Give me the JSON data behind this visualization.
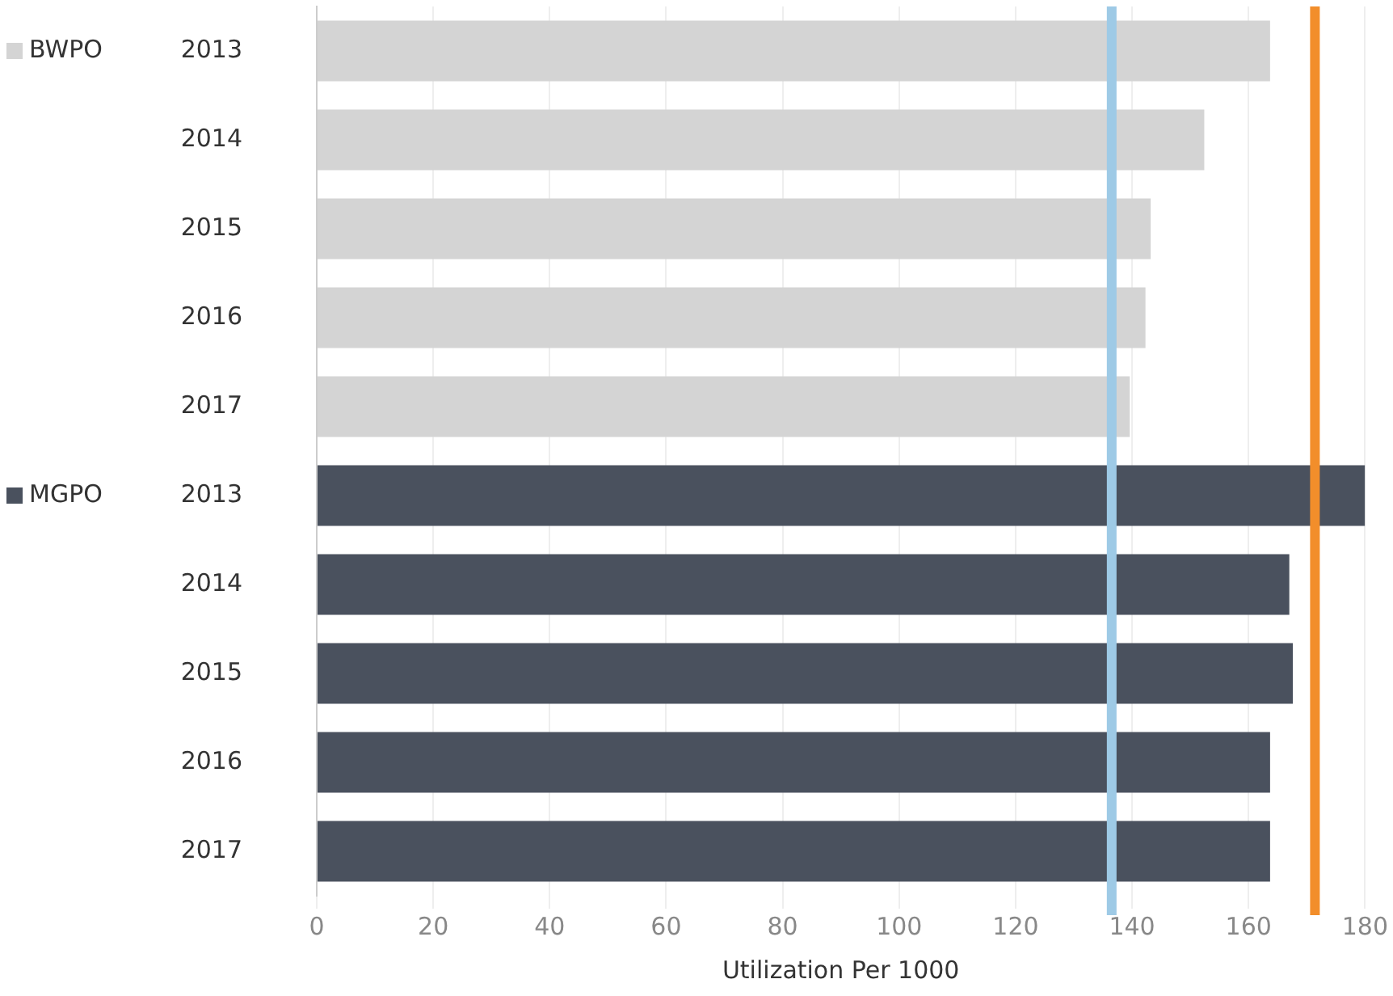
{
  "chart_data": {
    "type": "bar",
    "orientation": "horizontal",
    "stacked": true,
    "categories": [
      "2013",
      "2014",
      "2015",
      "2016",
      "2017",
      "2013",
      "2014",
      "2015",
      "2016",
      "2017"
    ],
    "series": [
      {
        "name": "BWPO",
        "color": "#d4d4d4",
        "values": [
          163.7,
          152.4,
          143.2,
          142.3,
          139.6,
          null,
          null,
          null,
          null,
          null
        ]
      },
      {
        "name": "MGPO",
        "color": "#4a515e",
        "values": [
          null,
          null,
          null,
          null,
          null,
          180,
          167,
          167.6,
          163.7,
          163.7
        ]
      }
    ],
    "xlabel": "Utilization Per 1000",
    "xlim": [
      0,
      180
    ],
    "xticks": [
      0,
      20,
      40,
      60,
      80,
      100,
      120,
      140,
      160,
      180
    ],
    "ref_lines": [
      {
        "axis": "x",
        "value": 136.5,
        "color": "#9ecae6"
      },
      {
        "axis": "x",
        "value": 171.4,
        "color": "#f28e2b"
      }
    ],
    "grid": "x",
    "legend": "left"
  }
}
